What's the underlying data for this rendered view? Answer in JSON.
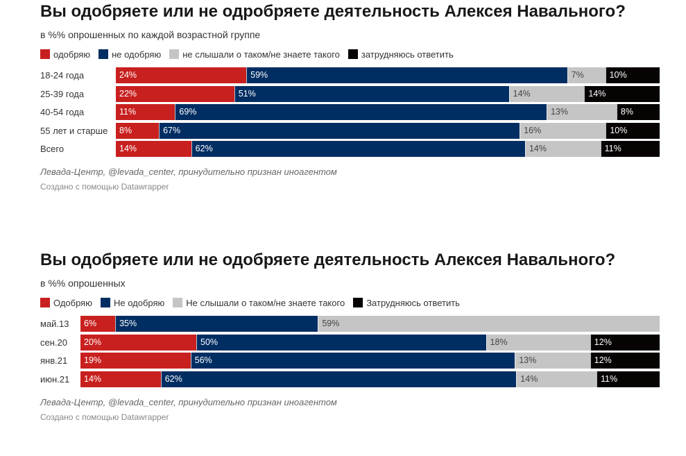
{
  "colors": {
    "approve": "#c8201f",
    "disapprove": "#002e63",
    "not_heard": "#c5c5c5",
    "hard_to_say": "#070303"
  },
  "chart_data": [
    {
      "type": "bar",
      "stacked": true,
      "orientation": "horizontal",
      "title": "Вы одобряете или не одробряете деятельность Алексея Навального?",
      "subtitle": "в %% опрошенных по каждой возрастной группе",
      "legend": [
        "одобряю",
        "не одобряю",
        "не слышали о таком/не знаете такого",
        "затрудняюсь ответить"
      ],
      "legend_position": "top-left",
      "categories": [
        "18-24 года",
        "25-39 года",
        "40-54 года",
        "55 лет и старше",
        "Всего"
      ],
      "series": [
        {
          "name": "одобряю",
          "key": "approve",
          "values": [
            24,
            22,
            11,
            8,
            14
          ]
        },
        {
          "name": "не одобряю",
          "key": "disapprove",
          "values": [
            59,
            51,
            69,
            67,
            62
          ]
        },
        {
          "name": "не слышали о таком/не знаете такого",
          "key": "not_heard",
          "values": [
            7,
            14,
            13,
            16,
            14
          ]
        },
        {
          "name": "затрудняюсь ответить",
          "key": "hard_to_say",
          "values": [
            10,
            14,
            8,
            10,
            11
          ]
        }
      ],
      "xlim": [
        0,
        100
      ],
      "value_suffix": "%",
      "source": "Левада-Центр, @levada_center, принудительно признан иноагентом",
      "credit": "Создано с помощью Datawrapper"
    },
    {
      "type": "bar",
      "stacked": true,
      "orientation": "horizontal",
      "title": "Вы одобряете или не одобряете деятельность Алексея Навального?",
      "subtitle": "в %% опрошенных",
      "legend": [
        "Одобряю",
        "Не одобряю",
        "Не слышали о таком/не знаете такого",
        "Затрудняюсь ответить"
      ],
      "legend_position": "top-left",
      "categories": [
        "май.13",
        "сен.20",
        "янв.21",
        "июн.21"
      ],
      "series": [
        {
          "name": "Одобряю",
          "key": "approve",
          "values": [
            6,
            20,
            19,
            14
          ]
        },
        {
          "name": "Не одобряю",
          "key": "disapprove",
          "values": [
            35,
            50,
            56,
            62
          ]
        },
        {
          "name": "Не слышали о таком/не знаете такого",
          "key": "not_heard",
          "values": [
            59,
            18,
            13,
            14
          ]
        },
        {
          "name": "Затрудняюсь ответить",
          "key": "hard_to_say",
          "values": [
            null,
            12,
            12,
            11
          ]
        }
      ],
      "xlim": [
        0,
        100
      ],
      "value_suffix": "%",
      "source": "Левада-Центр, @levada_center, принудительно признан иноагентом",
      "credit": "Создано с помощью Datawrapper"
    }
  ]
}
